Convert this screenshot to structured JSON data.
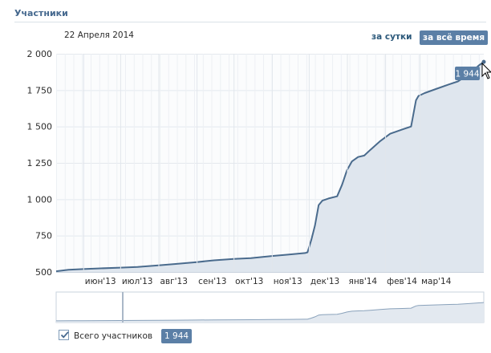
{
  "section": {
    "title": "Участники"
  },
  "date_label": "22 Апреля 2014",
  "period": {
    "day": "за сутки",
    "all_time": "за всё время"
  },
  "colors": {
    "line": "#4a6b8d",
    "fill": "#dfe6ee",
    "accent": "#5b7fa6"
  },
  "chart_data": {
    "type": "area",
    "ylim": [
      500,
      2000
    ],
    "y_ticks": [
      500,
      750,
      1000,
      1250,
      1500,
      1750,
      2000
    ],
    "y_tick_labels": [
      "500",
      "750",
      "1 000",
      "1 250",
      "1 500",
      "1 750",
      "2 000"
    ],
    "x_tick_labels": [
      "июн'13",
      "июл'13",
      "авг'13",
      "сен'13",
      "окт'13",
      "ноя'13",
      "дек'13",
      "янв'14",
      "фев'14",
      "мар'14"
    ],
    "x_tick_dates": [
      "2013-06-01",
      "2013-07-01",
      "2013-08-01",
      "2013-09-01",
      "2013-10-01",
      "2013-11-01",
      "2013-12-01",
      "2014-01-01",
      "2014-02-01",
      "2014-03-01"
    ],
    "x_range": [
      "2013-05-10",
      "2014-04-22"
    ],
    "grid": true,
    "series": [
      {
        "name": "Всего участников",
        "x": [
          "2013-05-10",
          "2013-05-20",
          "2013-06-01",
          "2013-06-15",
          "2013-07-01",
          "2013-07-15",
          "2013-08-01",
          "2013-08-15",
          "2013-09-01",
          "2013-09-15",
          "2013-10-01",
          "2013-10-15",
          "2013-11-01",
          "2013-11-15",
          "2013-11-28",
          "2013-11-30",
          "2013-12-03",
          "2013-12-06",
          "2013-12-09",
          "2013-12-12",
          "2013-12-17",
          "2013-12-24",
          "2013-12-28",
          "2014-01-01",
          "2014-01-05",
          "2014-01-10",
          "2014-01-15",
          "2014-01-20",
          "2014-01-28",
          "2014-02-05",
          "2014-02-15",
          "2014-02-22",
          "2014-02-26",
          "2014-02-28",
          "2014-03-05",
          "2014-03-15",
          "2014-03-25",
          "2014-04-01",
          "2014-04-10",
          "2014-04-18",
          "2014-04-22"
        ],
        "values": [
          505,
          515,
          520,
          525,
          530,
          535,
          545,
          555,
          568,
          580,
          590,
          595,
          610,
          620,
          630,
          635,
          720,
          820,
          960,
          990,
          1005,
          1020,
          1100,
          1200,
          1260,
          1290,
          1300,
          1340,
          1400,
          1450,
          1480,
          1500,
          1680,
          1710,
          1730,
          1760,
          1790,
          1810,
          1860,
          1920,
          1944
        ]
      }
    ],
    "cursor_value": "1 944"
  },
  "legend": {
    "label": "Всего участников",
    "value": "1 944"
  }
}
